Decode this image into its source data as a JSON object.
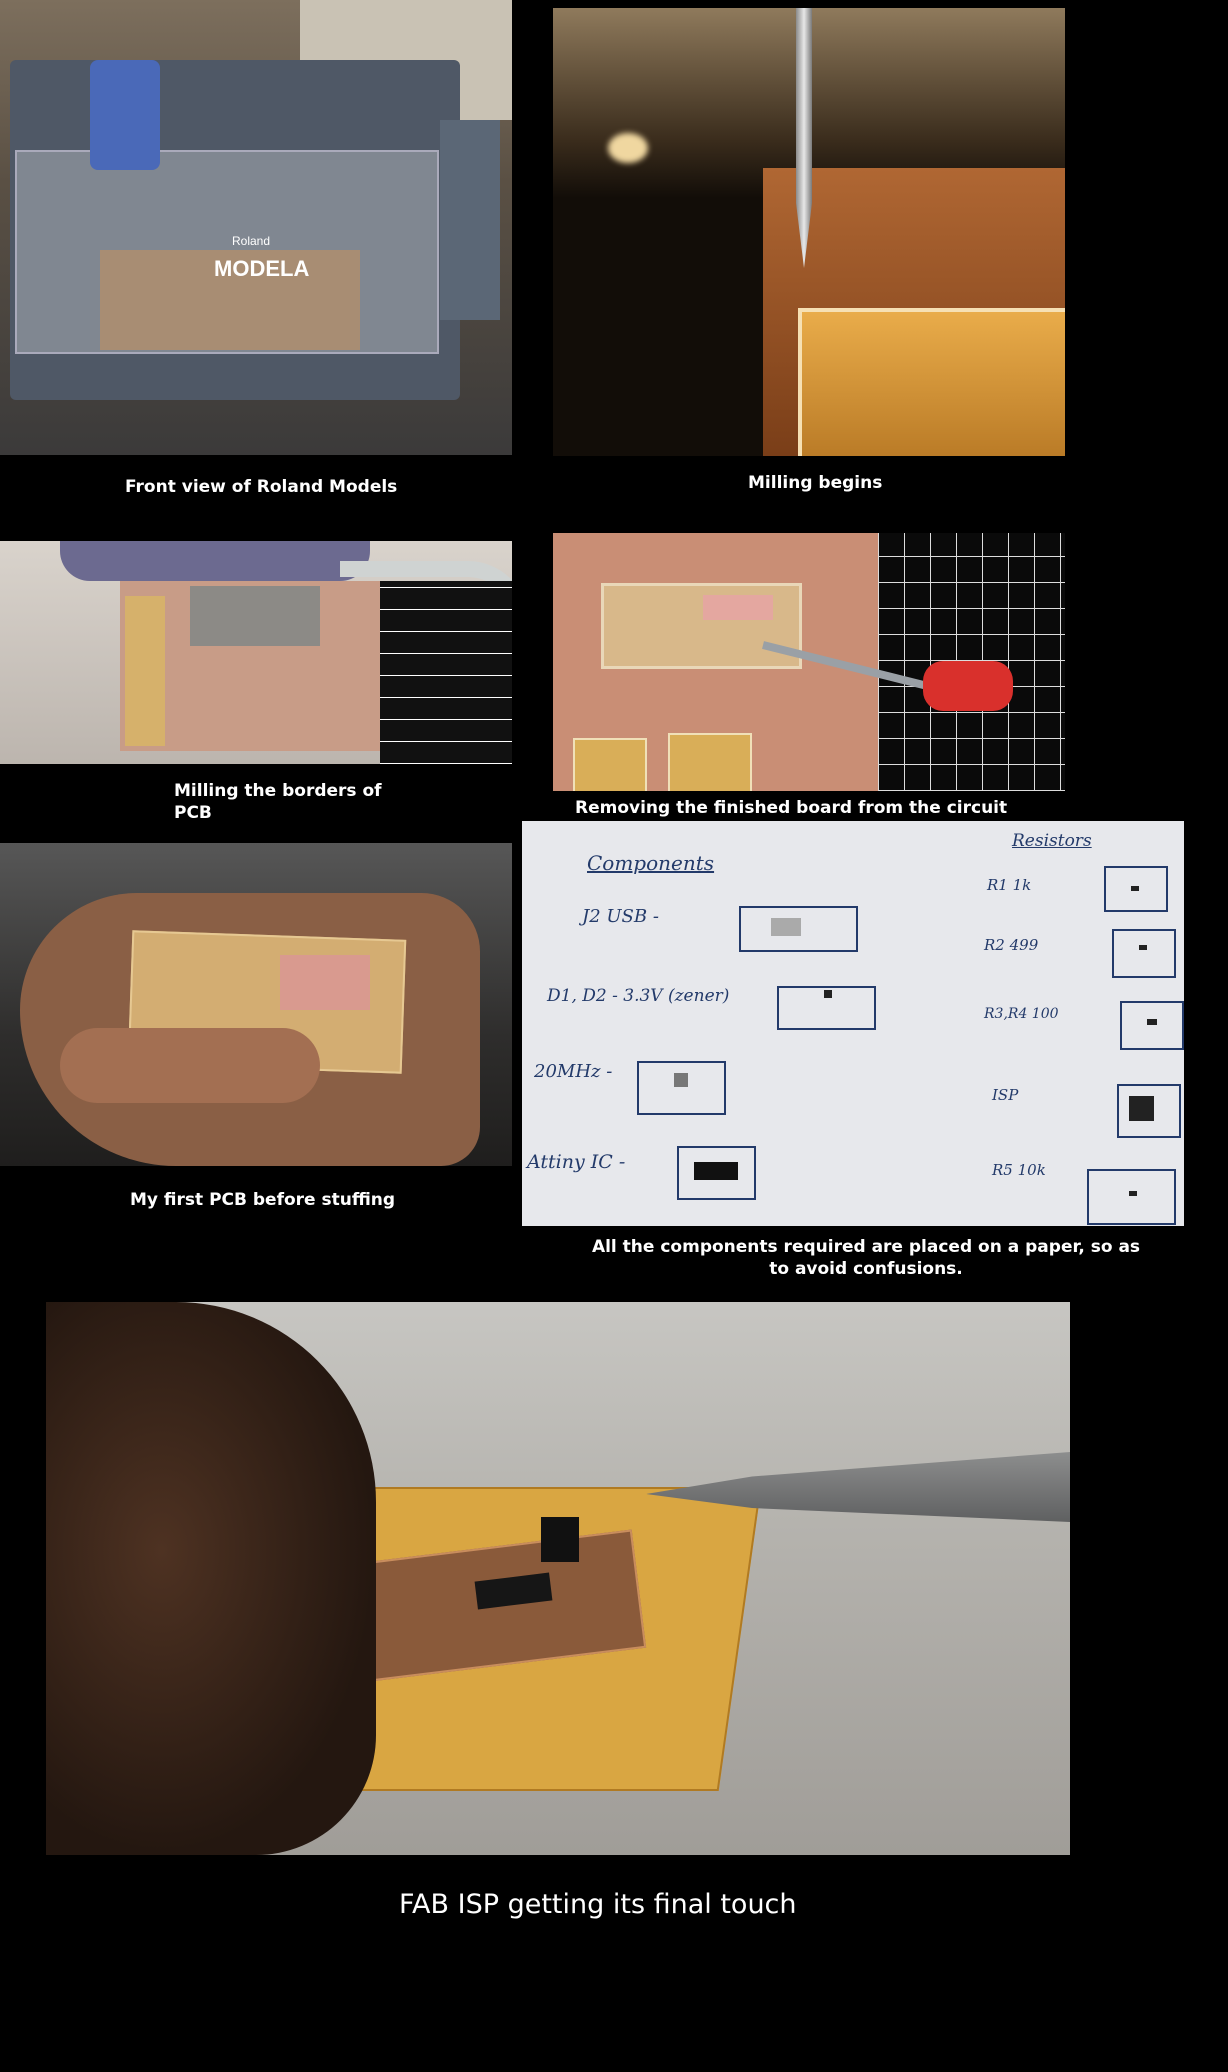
{
  "captions": {
    "front_view": "Front view of Roland Models",
    "milling_begins": "Milling begins",
    "milling_borders": "Milling the borders of PCB",
    "removing_board": "Removing the finished board from the circuit",
    "first_pcb": "My first PCB before stuffing",
    "components": "All the components required are placed on a paper, so as to avoid confusions.",
    "final": "FAB ISP getting its final touch"
  },
  "photo1": {
    "brand": "Roland",
    "model": "MODELA"
  },
  "paper": {
    "left_heading": "Components",
    "right_heading": "Resistors",
    "left_items": [
      "J2   USB -",
      "D1, D2 - 3.3V (zener)",
      "20MHz -",
      "Attiny IC -"
    ],
    "right_items": [
      "R1    1k",
      "R2    499",
      "R3,R4   100",
      "ISP",
      "R5  10k"
    ]
  }
}
